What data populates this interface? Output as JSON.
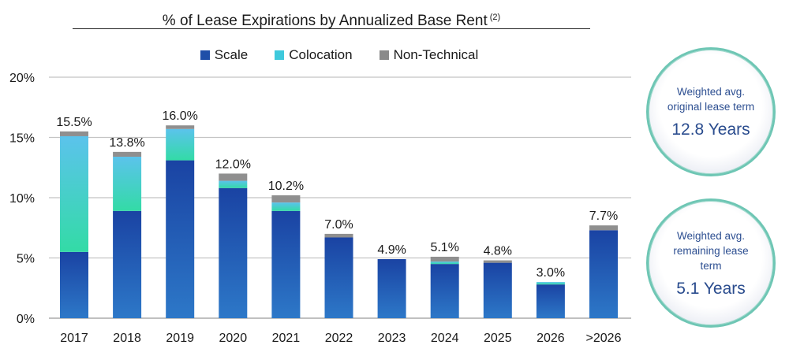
{
  "chart_data": {
    "type": "bar",
    "stacked": true,
    "title": "% of Lease Expirations by Annualized Base Rent",
    "title_superscript": "(2)",
    "categories": [
      "2017",
      "2018",
      "2019",
      "2020",
      "2021",
      "2022",
      "2023",
      "2024",
      "2025",
      "2026",
      ">2026"
    ],
    "series": [
      {
        "name": "Scale",
        "color": "#1f4fa8",
        "values": [
          5.5,
          8.9,
          13.1,
          10.8,
          8.9,
          6.7,
          4.9,
          4.5,
          4.6,
          2.8,
          7.3
        ]
      },
      {
        "name": "Colocation",
        "color": "#3ec9dc",
        "values": [
          9.6,
          4.5,
          2.6,
          0.6,
          0.7,
          0.0,
          0.0,
          0.2,
          0.0,
          0.2,
          0.0
        ]
      },
      {
        "name": "Non-Technical",
        "color": "#8a8a8a",
        "values": [
          0.4,
          0.4,
          0.3,
          0.6,
          0.6,
          0.3,
          0.0,
          0.4,
          0.2,
          0.0,
          0.4
        ]
      }
    ],
    "totals": [
      "15.5%",
      "13.8%",
      "16.0%",
      "12.0%",
      "10.2%",
      "7.0%",
      "4.9%",
      "5.1%",
      "4.8%",
      "3.0%",
      "7.7%"
    ],
    "ylim": [
      0,
      20
    ],
    "yticks": [
      0,
      5,
      10,
      15,
      20
    ],
    "ytick_labels": [
      "0%",
      "5%",
      "10%",
      "15%",
      "20%"
    ],
    "grid": true,
    "legend_position": "top-center"
  },
  "callouts": [
    {
      "label": "Weighted avg. original lease term",
      "value": "12.8 Years"
    },
    {
      "label": "Weighted avg. remaining lease term",
      "value": "5.1 Years"
    }
  ]
}
